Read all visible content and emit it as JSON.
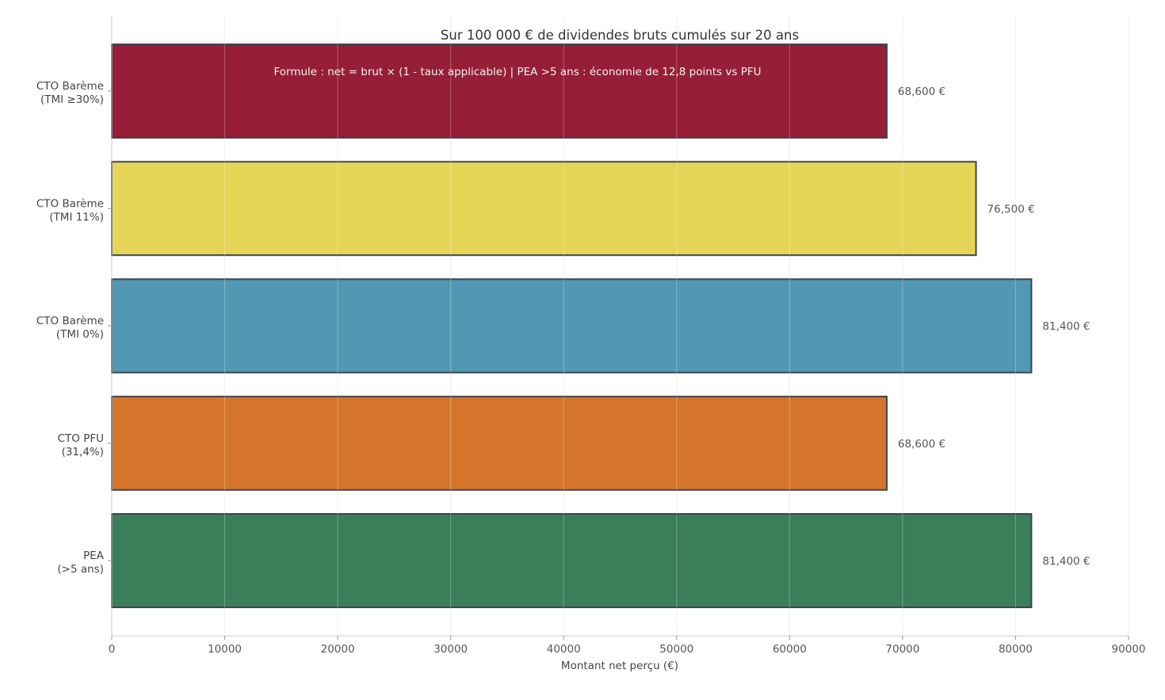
{
  "chart_data": {
    "type": "bar",
    "orientation": "horizontal",
    "title": "Sur 100 000 € de dividendes bruts cumulés sur 20 ans",
    "annotation": "Formule : net = brut × (1 - taux applicable) | PEA >5 ans : économie de 12,8 points vs PFU",
    "xlabel": "Montant net perçu (€)",
    "ylabel": "",
    "xlim": [
      0,
      90000
    ],
    "xticks": [
      "0",
      "10000",
      "20000",
      "30000",
      "40000",
      "50000",
      "60000",
      "70000",
      "80000",
      "90000"
    ],
    "grid": true,
    "categories": [
      {
        "line1": "CTO Barème",
        "line2": "(TMI ≥30%)"
      },
      {
        "line1": "CTO Barème",
        "line2": "(TMI 11%)"
      },
      {
        "line1": "CTO Barème",
        "line2": "(TMI 0%)"
      },
      {
        "line1": "CTO PFU",
        "line2": "(31,4%)"
      },
      {
        "line1": "PEA",
        "line2": "(>5 ans)"
      }
    ],
    "values": [
      68600,
      76500,
      81400,
      68600,
      81400
    ],
    "value_labels": [
      "68,600 €",
      "76,500 €",
      "81,400 €",
      "68,600 €",
      "81,400 €"
    ],
    "colors": [
      "#961E36",
      "#E7D557",
      "#5298B3",
      "#D5752B",
      "#3A7F5A"
    ]
  }
}
